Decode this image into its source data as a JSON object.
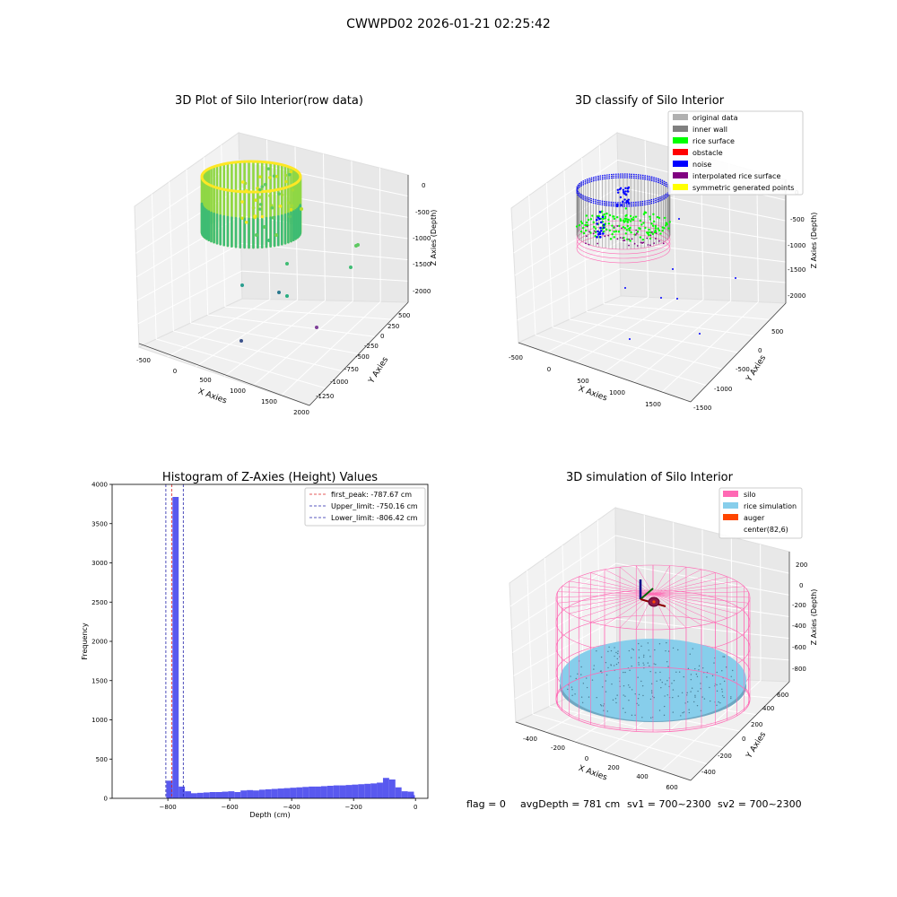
{
  "suptitle": "CWWPD02 2026-01-21 02:25:42",
  "status_line": {
    "flag": "flag = 0",
    "avg_depth": "avgDepth = 781 cm",
    "sv1": "sv1 = 700~2300",
    "sv2": "sv2 = 700~2300"
  },
  "colors": {
    "hist_bar": "#5050ee",
    "first_peak": "#dd2222",
    "limit": "#2222aa",
    "silo": "#ff69b4",
    "rice_sim": "#87ceeb",
    "auger": "#ff4500"
  },
  "chart_data": [
    {
      "id": "raw",
      "type": "scatter",
      "title": "3D Plot of Silo Interior(row data)",
      "xlabel": "X Axies",
      "ylabel": "Y Axies",
      "zlabel": "Z Axies (Depth)",
      "x_ticks": [
        "-500",
        "0",
        "500",
        "1000",
        "1500",
        "2000"
      ],
      "y_ticks": [
        "-1250",
        "-1000",
        "-750",
        "-500",
        "-250",
        "0",
        "250",
        "500"
      ],
      "z_ticks": [
        "0",
        "-500",
        "-1000",
        "-1500",
        "-2000"
      ]
    },
    {
      "id": "classify",
      "type": "scatter",
      "title": "3D classify of Silo Interior",
      "xlabel": "X Axies",
      "ylabel": "Y Axies",
      "zlabel": "Z Axies (Depth)",
      "x_ticks": [
        "-500",
        "0",
        "500",
        "1000",
        "1500"
      ],
      "y_ticks": [
        "-1500",
        "-1000",
        "-500",
        "0",
        "500"
      ],
      "z_ticks": [
        "0",
        "-500",
        "-1000",
        "-1500",
        "-2000"
      ],
      "legend_position": "top-right",
      "legend": [
        {
          "label": "original data",
          "color": "#b0b0b0"
        },
        {
          "label": "inner wall",
          "color": "#808080"
        },
        {
          "label": "rice surface",
          "color": "#00ff00"
        },
        {
          "label": "obstacle",
          "color": "#ff0000"
        },
        {
          "label": "noise",
          "color": "#0000ff"
        },
        {
          "label": "interpolated rice surface",
          "color": "#800080"
        },
        {
          "label": "symmetric generated points",
          "color": "#ffff00"
        }
      ]
    },
    {
      "id": "hist",
      "type": "bar",
      "title": "Histogram of Z-Axies (Height) Values",
      "xlabel": "Depth (cm)",
      "ylabel": "Frequency",
      "xlim": [
        -980,
        40
      ],
      "ylim": [
        0,
        4000
      ],
      "x_ticks": [
        -800,
        -600,
        -400,
        -200,
        0
      ],
      "y_ticks": [
        0,
        500,
        1000,
        1500,
        2000,
        2500,
        3000,
        3500,
        4000
      ],
      "bin_edges": [
        -805,
        -785,
        -765,
        -745,
        -725,
        -705,
        -685,
        -665,
        -645,
        -625,
        -605,
        -585,
        -565,
        -545,
        -525,
        -505,
        -485,
        -465,
        -445,
        -425,
        -405,
        -385,
        -365,
        -345,
        -325,
        -305,
        -285,
        -265,
        -245,
        -225,
        -205,
        -185,
        -165,
        -145,
        -125,
        -105,
        -85,
        -65,
        -45,
        -25
      ],
      "values": [
        225,
        3840,
        150,
        90,
        65,
        70,
        75,
        80,
        80,
        85,
        90,
        80,
        100,
        105,
        100,
        110,
        115,
        120,
        125,
        130,
        135,
        140,
        145,
        150,
        150,
        155,
        160,
        165,
        165,
        170,
        175,
        180,
        185,
        190,
        200,
        260,
        240,
        140,
        90,
        85
      ],
      "extra_bins": [
        {
          "x0": -25,
          "x1": -5,
          "value": 0
        },
        {
          "x0": -15,
          "x1": -2,
          "value": 40
        }
      ],
      "lines": [
        {
          "label": "first_peak: -787.67 cm",
          "x": -787.67,
          "color": "#dd2222"
        },
        {
          "label": "Upper_limit: -750.16 cm",
          "x": -750.16,
          "color": "#2222aa"
        },
        {
          "label": "Lower_limit: -806.42 cm",
          "x": -806.42,
          "color": "#2222aa"
        }
      ],
      "legend_position": "top-right"
    },
    {
      "id": "sim",
      "type": "scatter",
      "title": "3D simulation of Silo Interior",
      "xlabel": "X Axies",
      "ylabel": "Y Axies",
      "zlabel": "Z Axies (Depth)",
      "x_ticks": [
        "-400",
        "-200",
        "0",
        "200",
        "400",
        "600"
      ],
      "y_ticks": [
        "-400",
        "-200",
        "0",
        "200",
        "400",
        "600"
      ],
      "z_ticks": [
        "200",
        "0",
        "-200",
        "-400",
        "-600",
        "-800"
      ],
      "legend_position": "top-right",
      "legend": [
        {
          "label": "silo",
          "color": "#ff69b4"
        },
        {
          "label": "rice simulation",
          "color": "#87ceeb"
        },
        {
          "label": "auger",
          "color": "#ff4500"
        },
        {
          "label": "center(82,6)",
          "color": ""
        }
      ]
    }
  ]
}
